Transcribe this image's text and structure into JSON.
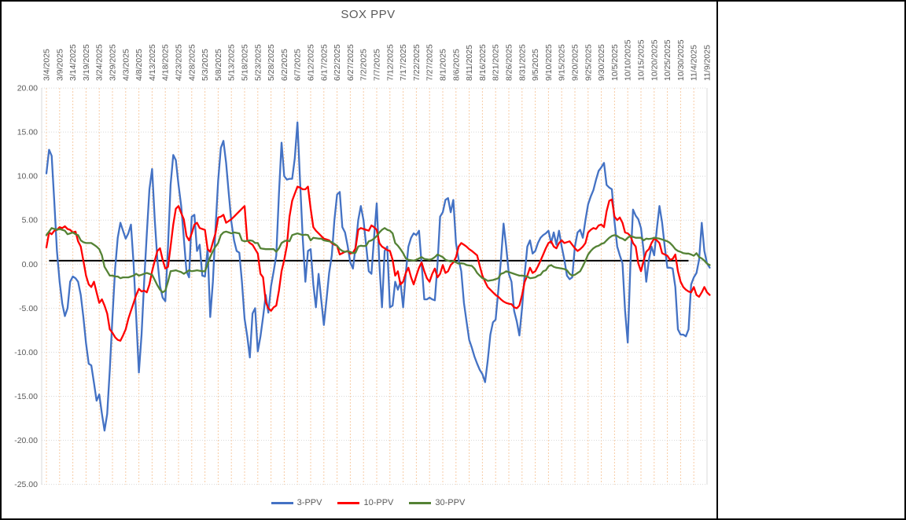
{
  "chart_data": {
    "type": "line",
    "title": "SOX PPV",
    "xlabel": "",
    "ylabel": "",
    "ylim": [
      -25,
      20
    ],
    "y_step": 5,
    "grid": {
      "vertical": true,
      "horizontal": true
    },
    "legend_position": "bottom",
    "y_tick_labels": [
      "20.00",
      "15.00",
      "10.00",
      "5.00",
      "0.00",
      "-5.00",
      "-10.00",
      "-15.00",
      "-20.00",
      "-25.00"
    ],
    "x_tick_labels": [
      "3/4/2025",
      "3/9/2025",
      "3/14/2025",
      "3/19/2025",
      "3/24/2025",
      "3/29/2025",
      "4/3/2025",
      "4/8/2025",
      "4/13/2025",
      "4/18/2025",
      "4/23/2025",
      "4/28/2025",
      "5/3/2025",
      "5/8/2025",
      "5/13/2025",
      "5/18/2025",
      "5/23/2025",
      "5/28/2025",
      "6/2/2025",
      "6/7/2025",
      "6/12/2025",
      "6/17/2025",
      "6/22/2025",
      "6/27/2025",
      "7/2/2025",
      "7/7/2025",
      "7/12/2025",
      "7/17/2025",
      "7/22/2025",
      "7/27/2025",
      "8/1/2025",
      "8/6/2025",
      "8/11/2025",
      "8/16/2025",
      "8/21/2025",
      "8/26/2025",
      "8/31/2025",
      "9/5/2025",
      "9/10/2025",
      "9/15/2025",
      "9/20/2025",
      "9/25/2025",
      "9/30/2025",
      "10/5/2025",
      "10/10/2025",
      "10/15/2025",
      "10/20/2025",
      "10/25/2025",
      "10/30/2025",
      "11/4/2025",
      "11/9/2025"
    ],
    "x_days_between_ticks": 5,
    "x_start_date": "3/4/2025",
    "x_points_are_daily": true,
    "reference_line": {
      "value": 0.4,
      "color": "#000000",
      "start_index": 1,
      "end_index": 243
    },
    "colors": {
      "series_blue": "#4472C4",
      "series_red": "#FF0000",
      "series_green": "#548235",
      "vertical_grid": "#F7CBA4",
      "horizontal_grid": "#D9D9D9",
      "axis_text": "#595959",
      "title_text": "#595959",
      "reference": "#000000"
    },
    "series": [
      {
        "name": "3-PPV",
        "color": "#4472C4",
        "values": [
          10.3,
          13.0,
          12.3,
          7.0,
          1.5,
          -2.0,
          -4.5,
          -5.9,
          -5.0,
          -2.0,
          -1.4,
          -1.6,
          -2.0,
          -3.5,
          -6.0,
          -9.0,
          -11.3,
          -11.5,
          -13.5,
          -15.5,
          -14.8,
          -17.0,
          -18.9,
          -17.0,
          -12.0,
          -6.0,
          -0.5,
          3.0,
          4.7,
          3.8,
          2.9,
          3.5,
          4.5,
          0.0,
          -6.0,
          -12.3,
          -8.0,
          -2.0,
          3.5,
          8.5,
          10.8,
          5.0,
          0.5,
          -2.5,
          -3.8,
          -4.2,
          2.0,
          9.0,
          12.4,
          11.8,
          9.0,
          6.6,
          3.0,
          -0.8,
          -1.5,
          5.4,
          5.6,
          1.5,
          2.2,
          -1.3,
          -1.4,
          1.8,
          -6.0,
          -2.0,
          4.0,
          9.5,
          13.2,
          14.0,
          11.5,
          8.1,
          4.8,
          2.7,
          1.5,
          1.3,
          -2.0,
          -6.2,
          -8.2,
          -10.6,
          -5.6,
          -5.0,
          -9.9,
          -8.2,
          -6.0,
          -3.5,
          -5.5,
          -2.5,
          -0.8,
          1.0,
          8.0,
          13.8,
          10.0,
          9.6,
          9.7,
          9.7,
          12.0,
          16.1,
          9.3,
          3.0,
          -2.0,
          1.5,
          1.7,
          -2.3,
          -4.9,
          -1.1,
          -4.0,
          -6.9,
          -4.0,
          -1.0,
          1.0,
          5.0,
          7.9,
          8.2,
          4.2,
          3.6,
          2.1,
          0.2,
          -0.5,
          2.0,
          5.0,
          6.6,
          5.0,
          2.1,
          -0.8,
          -1.1,
          3.0,
          6.9,
          0.0,
          -4.9,
          1.5,
          2.0,
          -4.9,
          -4.7,
          -2.0,
          -2.9,
          -2.0,
          -4.9,
          -1.0,
          2.0,
          3.0,
          3.5,
          3.3,
          3.8,
          0.0,
          -4.0,
          -4.0,
          -3.8,
          -4.0,
          -4.1,
          0.0,
          5.4,
          5.9,
          7.3,
          7.5,
          5.9,
          7.3,
          2.4,
          0.5,
          -0.8,
          -4.4,
          -6.5,
          -8.6,
          -9.5,
          -10.5,
          -11.3,
          -12.0,
          -12.5,
          -13.4,
          -11.0,
          -8.0,
          -6.6,
          -6.3,
          -3.0,
          0.4,
          4.6,
          2.0,
          -1.1,
          -2.0,
          -5.3,
          -6.5,
          -8.1,
          -5.0,
          -1.1,
          2.0,
          2.7,
          1.2,
          1.5,
          2.4,
          3.0,
          3.3,
          3.5,
          3.8,
          2.4,
          3.6,
          2.2,
          3.8,
          2.0,
          0.5,
          -1.3,
          -1.7,
          -1.5,
          2.0,
          3.6,
          3.9,
          3.0,
          5.0,
          6.8,
          7.7,
          8.4,
          9.6,
          10.6,
          11.0,
          11.5,
          9.0,
          8.7,
          8.5,
          4.8,
          2.0,
          1.0,
          0.1,
          -5.3,
          -8.9,
          0.0,
          6.2,
          5.5,
          5.1,
          4.1,
          1.5,
          -2.0,
          0.5,
          2.0,
          1.0,
          4.0,
          6.6,
          4.7,
          2.0,
          -0.4,
          -0.4,
          -0.5,
          -2.6,
          -7.4,
          -8.0,
          -8.0,
          -8.2,
          -7.4,
          -2.3,
          -1.5,
          -1.0,
          0.5,
          4.7,
          1.5,
          0.1,
          -0.4
        ]
      },
      {
        "name": "10-PPV",
        "color": "#FF0000",
        "values": [
          1.9,
          3.6,
          3.4,
          3.8,
          3.9,
          4.2,
          4.1,
          4.3,
          4.0,
          3.9,
          3.6,
          3.7,
          2.6,
          2.0,
          0.4,
          -1.3,
          -2.3,
          -2.6,
          -2.0,
          -3.2,
          -4.4,
          -4.0,
          -4.7,
          -5.6,
          -7.4,
          -7.8,
          -8.3,
          -8.6,
          -8.7,
          -8.1,
          -7.4,
          -6.2,
          -5.3,
          -4.4,
          -3.5,
          -2.8,
          -3.1,
          -3.0,
          -3.2,
          -2.3,
          -0.8,
          0.4,
          1.5,
          1.8,
          0.5,
          -0.5,
          -0.3,
          2.0,
          4.5,
          6.3,
          6.6,
          5.8,
          5.1,
          3.2,
          2.7,
          3.5,
          4.5,
          4.7,
          4.1,
          4.0,
          3.9,
          1.7,
          1.4,
          2.5,
          3.5,
          5.3,
          5.4,
          5.6,
          4.7,
          4.9,
          5.1,
          5.4,
          5.7,
          6.0,
          6.3,
          6.6,
          2.7,
          2.4,
          2.2,
          1.7,
          1.2,
          -1.1,
          -1.5,
          -4.3,
          -5.0,
          -5.3,
          -4.9,
          -4.7,
          -3.0,
          -0.8,
          0.5,
          2.1,
          5.4,
          7.2,
          8.0,
          8.8,
          8.7,
          8.5,
          8.5,
          8.8,
          6.3,
          4.2,
          3.8,
          3.5,
          3.2,
          2.9,
          2.8,
          2.7,
          2.4,
          2.2,
          2.1,
          1.1,
          1.25,
          1.4,
          1.5,
          1.2,
          1.3,
          1.8,
          3.9,
          4.1,
          4.0,
          3.9,
          3.8,
          4.4,
          4.2,
          3.9,
          2.4,
          2.0,
          1.8,
          1.6,
          1.5,
          0.5,
          -1.3,
          -0.8,
          -2.3,
          -2.0,
          -1.0,
          -0.4,
          -1.5,
          -2.3,
          -1.3,
          -0.4,
          0.2,
          -0.8,
          -1.6,
          -2.0,
          -1.1,
          -0.5,
          -1.5,
          -1.1,
          -0.1,
          -1.0,
          -0.8,
          -0.1,
          0.2,
          0.8,
          2.0,
          2.4,
          2.2,
          2.0,
          1.7,
          1.5,
          1.25,
          1.0,
          -0.2,
          -1.3,
          -2.0,
          -2.6,
          -2.9,
          -3.2,
          -3.5,
          -3.7,
          -4.0,
          -4.25,
          -4.4,
          -4.5,
          -4.55,
          -4.9,
          -5.0,
          -4.7,
          -3.5,
          -2.0,
          -1.3,
          -0.4,
          -1.0,
          -0.8,
          -0.24,
          0.4,
          1.1,
          1.8,
          2.4,
          2.6,
          2.0,
          1.8,
          2.4,
          2.7,
          2.4,
          2.5,
          2.6,
          2.2,
          1.8,
          1.5,
          1.7,
          2.0,
          2.4,
          3.6,
          3.9,
          4.1,
          4.0,
          4.4,
          4.5,
          4.2,
          6.0,
          7.2,
          7.35,
          5.4,
          5.0,
          5.3,
          4.7,
          3.6,
          3.5,
          3.2,
          2.4,
          2.0,
          0.1,
          -0.8,
          0.4,
          1.4,
          1.7,
          2.4,
          2.9,
          2.7,
          2.4,
          1.25,
          1.1,
          0.95,
          0.5,
          0.6,
          1.1,
          -0.8,
          -2.0,
          -2.6,
          -2.9,
          -3.1,
          -3.2,
          -2.6,
          -3.5,
          -3.7,
          -3.2,
          -2.6,
          -3.2,
          -3.5
        ]
      },
      {
        "name": "30-PPV",
        "color": "#548235",
        "values": [
          3.3,
          3.7,
          4.1,
          4.0,
          3.9,
          4.0,
          3.9,
          3.8,
          3.4,
          3.5,
          3.6,
          3.4,
          3.3,
          2.7,
          2.5,
          2.4,
          2.4,
          2.4,
          2.2,
          2.0,
          1.7,
          1.0,
          -0.3,
          -0.8,
          -1.3,
          -1.3,
          -1.4,
          -1.4,
          -1.6,
          -1.5,
          -1.5,
          -1.5,
          -1.4,
          -1.3,
          -1.1,
          -1.3,
          -1.2,
          -1.1,
          -1.0,
          -1.1,
          -1.2,
          -1.8,
          -2.4,
          -2.9,
          -3.2,
          -3.0,
          -2.0,
          -0.8,
          -0.75,
          -0.7,
          -0.8,
          -0.9,
          -1.1,
          -0.9,
          -0.7,
          -0.8,
          -0.75,
          -0.7,
          -0.75,
          -0.8,
          -0.8,
          0.0,
          0.8,
          1.5,
          2.0,
          2.4,
          3.3,
          3.6,
          3.7,
          3.6,
          3.5,
          3.6,
          3.55,
          3.5,
          2.7,
          2.6,
          2.65,
          2.7,
          2.65,
          2.4,
          2.4,
          1.8,
          1.75,
          1.7,
          1.7,
          1.7,
          1.7,
          1.4,
          1.8,
          2.4,
          2.6,
          2.7,
          2.6,
          3.3,
          3.4,
          3.5,
          3.4,
          3.3,
          3.35,
          3.3,
          2.7,
          3.0,
          2.95,
          2.9,
          2.9,
          2.7,
          2.65,
          2.6,
          2.5,
          2.3,
          2.1,
          1.7,
          1.5,
          1.4,
          1.45,
          1.4,
          1.25,
          1.3,
          2.0,
          2.1,
          2.05,
          2.1,
          2.6,
          2.7,
          2.9,
          3.2,
          3.6,
          3.9,
          4.1,
          3.9,
          3.8,
          3.5,
          2.4,
          2.1,
          1.7,
          1.25,
          0.65,
          0.5,
          0.45,
          0.4,
          0.5,
          0.65,
          0.8,
          0.6,
          0.55,
          0.5,
          0.6,
          0.8,
          1.1,
          0.95,
          0.8,
          0.5,
          0.4,
          0.3,
          0.35,
          0.2,
          0.06,
          0.1,
          0.06,
          -0.1,
          -0.15,
          -0.2,
          -0.5,
          -1.0,
          -1.3,
          -1.6,
          -1.7,
          -1.9,
          -1.85,
          -1.8,
          -1.7,
          -1.6,
          -1.1,
          -1.0,
          -0.8,
          -0.9,
          -1.0,
          -1.1,
          -1.2,
          -1.3,
          -1.3,
          -1.35,
          -1.4,
          -1.6,
          -1.55,
          -1.5,
          -1.3,
          -1.2,
          -0.8,
          -0.7,
          -0.24,
          -0.1,
          -0.3,
          -0.4,
          -0.45,
          -0.5,
          -0.55,
          -0.7,
          -1.1,
          -1.3,
          -1.2,
          -1.0,
          -0.8,
          -0.24,
          0.4,
          1.1,
          1.5,
          1.8,
          2.0,
          2.1,
          2.3,
          2.4,
          2.7,
          3.0,
          3.2,
          3.3,
          3.2,
          3.0,
          2.9,
          2.7,
          3.0,
          3.2,
          3.1,
          3.0,
          3.0,
          3.0,
          2.7,
          2.9,
          2.85,
          2.9,
          3.0,
          2.95,
          2.9,
          2.8,
          2.7,
          2.6,
          2.4,
          2.1,
          1.7,
          1.5,
          1.4,
          1.25,
          1.2,
          1.2,
          1.1,
          0.95,
          1.25,
          0.8,
          0.65,
          0.4,
          0.06,
          -0.1
        ]
      }
    ],
    "legend": [
      "3-PPV",
      "10-PPV",
      "30-PPV"
    ]
  }
}
